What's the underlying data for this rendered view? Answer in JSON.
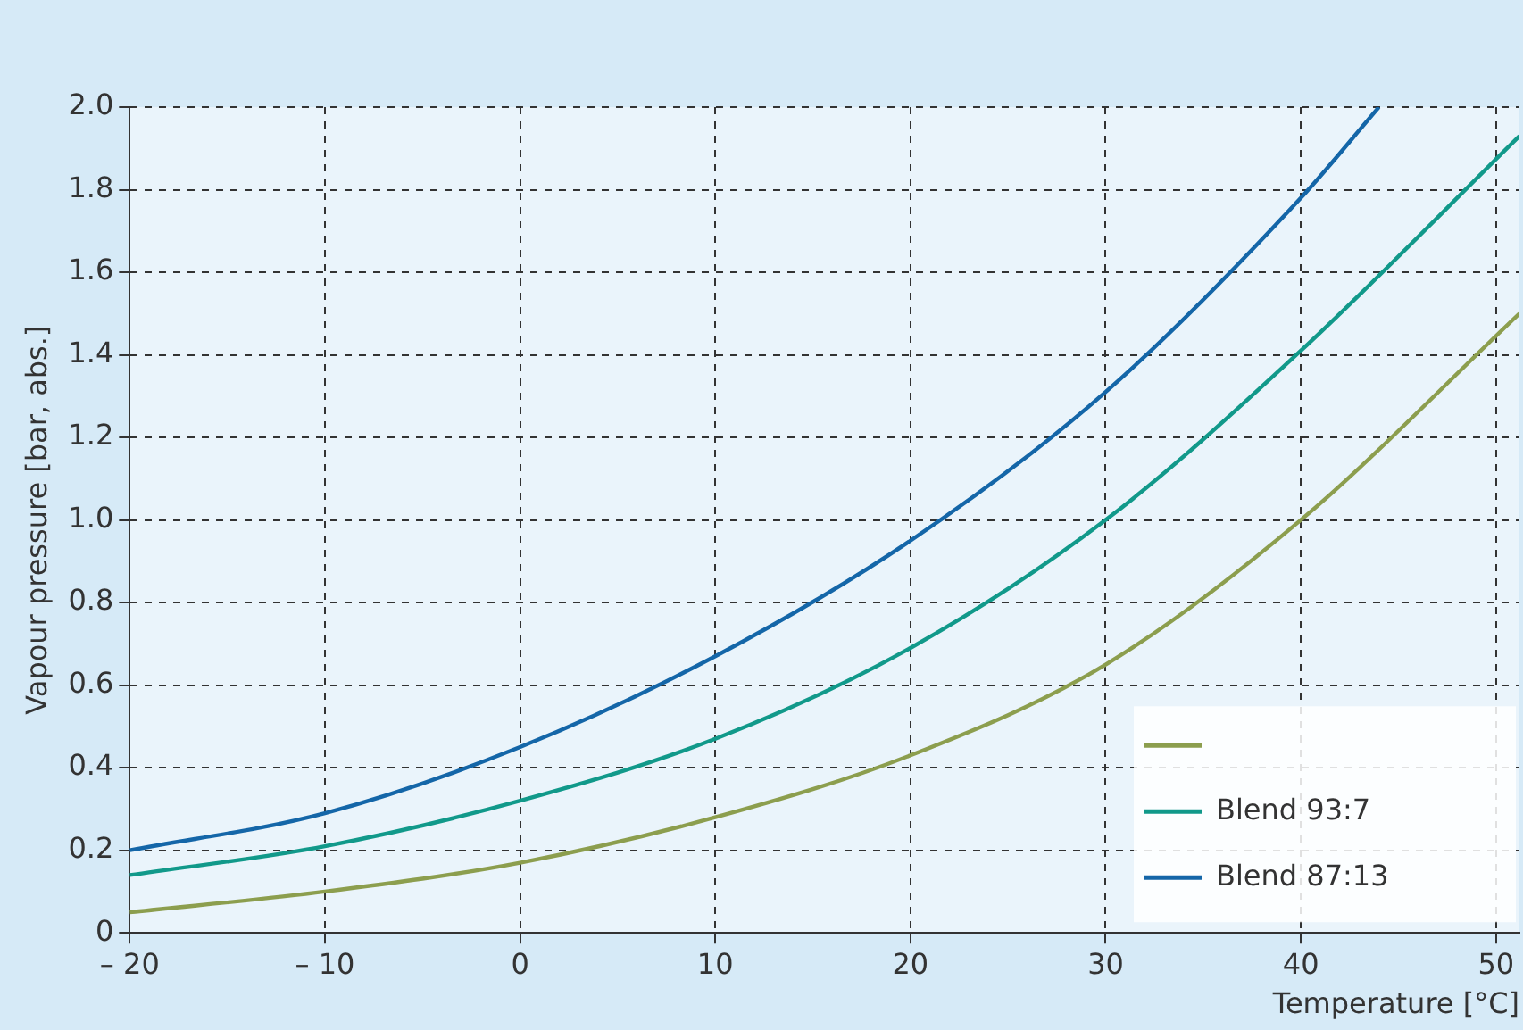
{
  "chart_data": {
    "type": "line",
    "xlabel": "Temperature [°C]",
    "ylabel": "Vapour pressure [bar, abs.]",
    "xlim": [
      -20,
      51.2
    ],
    "ylim": [
      0,
      2.0
    ],
    "xticks": [
      {
        "value": -20,
        "label": "– 20"
      },
      {
        "value": -10,
        "label": "– 10"
      },
      0,
      10,
      20,
      30,
      40,
      50
    ],
    "yticks": [
      0,
      0.2,
      0.4,
      0.6,
      0.8,
      {
        "value": 1,
        "label": "1.0"
      },
      1.2,
      1.4,
      1.6,
      1.8,
      {
        "value": 2,
        "label": "2.0"
      }
    ],
    "grid": true,
    "legend": "bottom right",
    "line_style": "solid",
    "marker": "none",
    "series": [
      {
        "color": "#8c9e4e",
        "x": [
          -20,
          -10,
          0,
          10,
          20,
          30,
          40,
          51.2
        ],
        "values": [
          0.05,
          0.1,
          0.17,
          0.28,
          0.43,
          0.65,
          1.0,
          1.5
        ]
      },
      {
        "name": "Blend 93:7",
        "color": "#11998a",
        "x": [
          -20,
          -10,
          0,
          10,
          20,
          30,
          40,
          51.2
        ],
        "values": [
          0.14,
          0.21,
          0.32,
          0.47,
          0.69,
          1.0,
          1.41,
          1.93
        ]
      },
      {
        "name": "Blend 87:13",
        "color": "#1466a8",
        "x": [
          -20,
          -10,
          0,
          10,
          20,
          30,
          40,
          44
        ],
        "values": [
          0.2,
          0.29,
          0.45,
          0.67,
          0.95,
          1.31,
          1.78,
          2.0
        ]
      }
    ]
  }
}
